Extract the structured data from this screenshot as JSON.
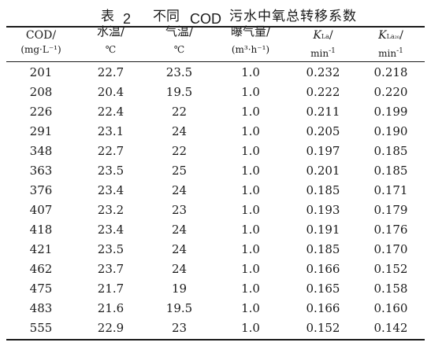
{
  "caption": {
    "prefix": "表",
    "number": "2",
    "middle": "不同",
    "cod": "COD",
    "suffix": "污水中氧总转移系数"
  },
  "columns": [
    {
      "line1": "COD/",
      "line2": "(mg·L⁻¹)"
    },
    {
      "line1": "水温/",
      "line2": "℃"
    },
    {
      "line1": "气温/",
      "line2": "℃"
    },
    {
      "line1": "曝气量/",
      "line2": "(m³·h⁻¹)"
    },
    {
      "line1_main": "K",
      "line1_sub": "La",
      "line1_end": "/",
      "line2_main": "min",
      "line2_sup": "-1"
    },
    {
      "line1_main": "K",
      "line1_sub": "La₂₀",
      "line1_end": "/",
      "line2_main": "min",
      "line2_sup": "-1"
    }
  ],
  "rows": [
    [
      "201",
      "22.7",
      "23.5",
      "1.0",
      "0.232",
      "0.218"
    ],
    [
      "208",
      "20.4",
      "19.5",
      "1.0",
      "0.222",
      "0.220"
    ],
    [
      "226",
      "22.4",
      "22",
      "1.0",
      "0.211",
      "0.199"
    ],
    [
      "291",
      "23.1",
      "24",
      "1.0",
      "0.205",
      "0.190"
    ],
    [
      "348",
      "22.7",
      "22",
      "1.0",
      "0.197",
      "0.185"
    ],
    [
      "363",
      "23.5",
      "25",
      "1.0",
      "0.201",
      "0.185"
    ],
    [
      "376",
      "23.4",
      "24",
      "1.0",
      "0.185",
      "0.171"
    ],
    [
      "407",
      "23.2",
      "23",
      "1.0",
      "0.193",
      "0.179"
    ],
    [
      "418",
      "23.4",
      "24",
      "1.0",
      "0.191",
      "0.176"
    ],
    [
      "421",
      "23.5",
      "24",
      "1.0",
      "0.185",
      "0.170"
    ],
    [
      "462",
      "23.7",
      "24",
      "1.0",
      "0.166",
      "0.152"
    ],
    [
      "475",
      "21.7",
      "19",
      "1.0",
      "0.165",
      "0.158"
    ],
    [
      "483",
      "21.6",
      "19.5",
      "1.0",
      "0.166",
      "0.160"
    ],
    [
      "555",
      "22.9",
      "23",
      "1.0",
      "0.152",
      "0.142"
    ]
  ]
}
